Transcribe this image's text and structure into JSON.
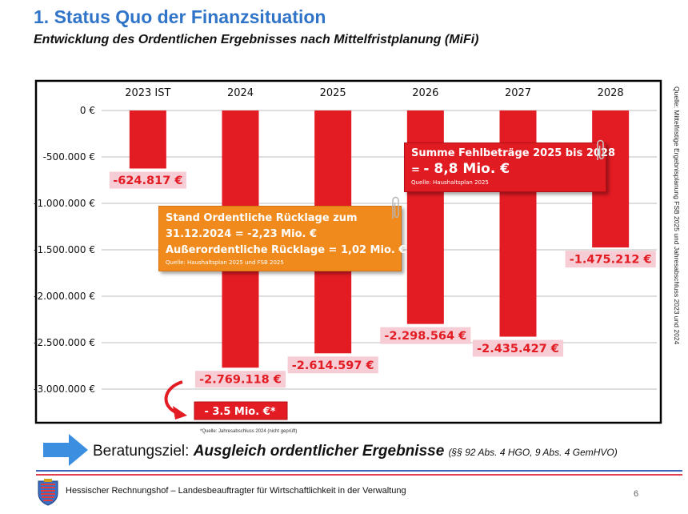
{
  "header": {
    "title": "1. Status Quo der Finanzsituation",
    "subtitle": "Entwicklung des Ordentlichen Ergebnisses nach Mittelfristplanung (MiFi)"
  },
  "chart_data": {
    "type": "bar",
    "categories": [
      "2023 IST",
      "2024",
      "2025",
      "2026",
      "2027",
      "2028"
    ],
    "values": [
      -624817,
      -2769118,
      -2614597,
      -2298564,
      -2435427,
      -1475212
    ],
    "value_labels": [
      "-624.817 €",
      "-2.769.118 €",
      "-2.614.597 €",
      "-2.298.564 €",
      "-2.435.427 €",
      "-1.475.212 €"
    ],
    "y_ticks": [
      0,
      -500000,
      -1000000,
      -1500000,
      -2000000,
      -2500000,
      -3000000
    ],
    "y_tick_labels": [
      "0 €",
      "-500.000 €",
      "-1.000.000 €",
      "-1.500.000 €",
      "-2.000.000 €",
      "-2.500.000 €",
      "-3.000.000 €"
    ],
    "ylim": [
      -3300000,
      0
    ],
    "grid": true,
    "xaxis_position": "top",
    "bar_color": "#e31b23",
    "label_bg_color": "#f6cdd5",
    "label_text_color": "#e31b23",
    "annotation": "- 3.5 Mio. €*"
  },
  "boxes": {
    "reserve": {
      "line1": "Stand Ordentliche Rücklage zum",
      "line2": "31.12.2024 = -2,23 Mio. €",
      "line3": "Außerordentliche Rücklage =  1,02 Mio. €",
      "source": "Quelle: Haushaltsplan 2025 und FSB 2025",
      "color": "#f08a1c"
    },
    "deficit": {
      "line1": "Summe Fehlbeträge 2025 bis 2028",
      "line2_prefix": "= ",
      "line2_value": "- 8,8 Mio. €",
      "source": "Quelle: Haushaltsplan 2025",
      "color": "#e01b22"
    }
  },
  "source_vertical": "Quelle: Mittelfristige Ergebnisplanung FSB 2025 und Jahresabschluss 2023 und 2024",
  "footnote": "*Quelle: Jahresabschluss 2024 (nicht geprüft)",
  "goal": {
    "label": "Beratungsziel: ",
    "emphasis": "Ausgleich ordentlicher Ergebnisse",
    "legal": "(§§ 92 Abs. 4 HGO, 9 Abs. 4 GemHVO)",
    "arrow_color": "#3c8fe0"
  },
  "footer": {
    "text": "Hessischer Rechnungshof – Landesbeauftragter für Wirtschaftlichkeit in der Verwaltung",
    "page_number": "6"
  }
}
